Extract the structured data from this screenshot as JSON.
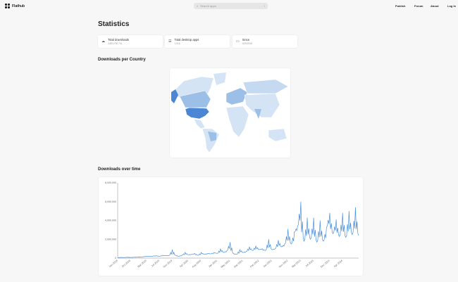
{
  "header": {
    "brand": "Flathub",
    "search_placeholder": "Search apps",
    "search_shortcut": "/",
    "nav": [
      "Publish",
      "Forum",
      "About",
      "Log In"
    ]
  },
  "page_title": "Statistics",
  "stats": [
    {
      "icon": "download-icon",
      "label": "Total downloads",
      "value": "3,803,750,741"
    },
    {
      "icon": "list-icon",
      "label": "Total desktop apps",
      "value": "1,016"
    },
    {
      "icon": "calendar-icon",
      "label": "Since",
      "value": "4/29/2018"
    }
  ],
  "map_section": {
    "title": "Downloads per Country"
  },
  "time_section": {
    "title": "Downloads over time"
  },
  "colors": {
    "line": "#4a90d9",
    "map_high": "#4a86d4",
    "map_mid": "#9cbfe8",
    "map_low": "#d5e4f5"
  },
  "chart_data": {
    "type": "line",
    "title": "Downloads over time",
    "ylim": [
      0,
      8000000
    ],
    "yticks": [
      "0",
      "2,000,000",
      "4,000,000",
      "6,000,000",
      "8,000,000"
    ],
    "ytick_values": [
      0,
      2000000,
      4000000,
      6000000,
      8000000
    ],
    "start_month": "Jun 2018",
    "xticks": [
      {
        "label": "Jun 2018",
        "month_index": 0
      },
      {
        "label": "Oct 2018",
        "month_index": 4
      },
      {
        "label": "Mar 2019",
        "month_index": 9
      },
      {
        "label": "Jul 2019",
        "month_index": 13
      },
      {
        "label": "Nov 2019",
        "month_index": 17
      },
      {
        "label": "Apr 2020",
        "month_index": 22
      },
      {
        "label": "Aug 2020",
        "month_index": 26
      },
      {
        "label": "Jan 2021",
        "month_index": 31
      },
      {
        "label": "May 2021",
        "month_index": 35
      },
      {
        "label": "Sep 2021",
        "month_index": 39
      },
      {
        "label": "Feb 2022",
        "month_index": 44
      },
      {
        "label": "Jun 2022",
        "month_index": 48
      },
      {
        "label": "Nov 2022",
        "month_index": 53
      },
      {
        "label": "Mar 2023",
        "month_index": 57
      },
      {
        "label": "Jul 2023",
        "month_index": 61
      },
      {
        "label": "Dec 2023",
        "month_index": 66
      },
      {
        "label": "Apr 2024",
        "month_index": 70
      }
    ],
    "values_millions": [
      0.05,
      0.08,
      0.06,
      0.1,
      0.07,
      0.09,
      0.1,
      0.12,
      0.15,
      0.2,
      0.18,
      0.22,
      0.25,
      0.2,
      0.3,
      0.25,
      0.28,
      0.9,
      0.3,
      0.2,
      0.3,
      0.6,
      0.35,
      0.4,
      0.5,
      0.3,
      0.6,
      0.4,
      0.5,
      0.45,
      0.6,
      0.5,
      1.0,
      0.6,
      0.8,
      1.7,
      0.5,
      0.4,
      0.9,
      0.6,
      0.7,
      1.2,
      0.8,
      1.3,
      0.9,
      1.0,
      0.8,
      2.0,
      0.9,
      1.0,
      1.9,
      1.2,
      1.5,
      3.1,
      1.5,
      2.8,
      3.4,
      6.0,
      1.8,
      4.3,
      2.0,
      4.3,
      1.7,
      4.0,
      1.8,
      3.3,
      4.8,
      2.6,
      4.1,
      2.3,
      4.8,
      2.2,
      5.0,
      2.5,
      5.4,
      2.4
    ]
  }
}
